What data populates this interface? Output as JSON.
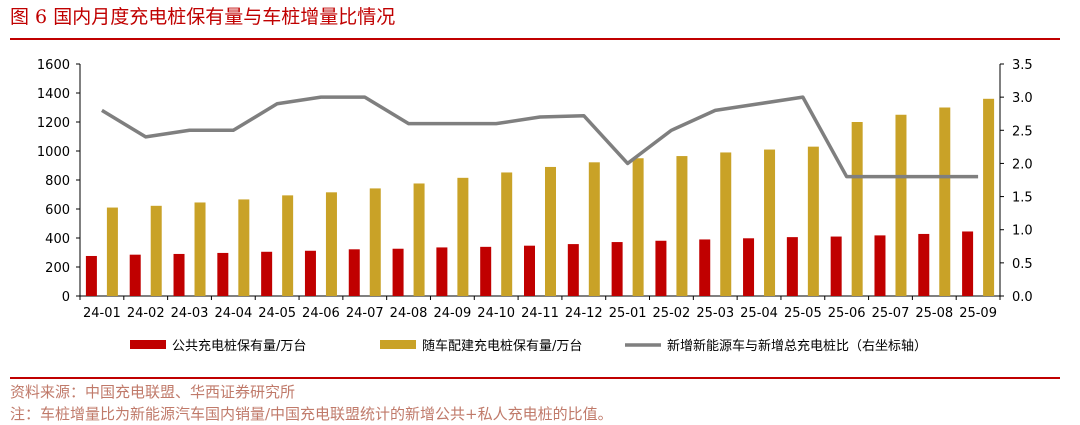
{
  "title": {
    "figure_label": "图 6",
    "text": "国内月度充电桩保有量与车桩增量比情况"
  },
  "footer": {
    "source": "资料来源：中国充电联盟、华西证券研究所",
    "note": "注：车桩增量比为新能源汽车国内销量/中国充电联盟统计的新增公共+私人充电桩的比值。"
  },
  "colors": {
    "public": "#c00000",
    "total": "#c9a227",
    "ratio": "#7f7f7f",
    "accent": "#c00000"
  },
  "chart_data": {
    "type": "bar",
    "categories": [
      "24-01",
      "24-02",
      "24-03",
      "24-04",
      "24-05",
      "24-06",
      "24-07",
      "24-08",
      "24-09",
      "24-10",
      "24-11",
      "24-12",
      "25-01",
      "25-02",
      "25-03",
      "25-04",
      "25-05",
      "25-06",
      "25-07",
      "25-08",
      "25-09"
    ],
    "series": [
      {
        "name": "公共充电桩保有量/万台",
        "type": "bar",
        "axis": "left",
        "values": [
          276,
          285,
          290,
          297,
          305,
          312,
          322,
          326,
          335,
          339,
          347,
          358,
          372,
          381,
          390,
          398,
          406,
          410,
          418,
          428,
          445
        ]
      },
      {
        "name": "随车配建充电桩保有量/万台",
        "type": "bar",
        "axis": "left",
        "values": [
          610,
          622,
          645,
          666,
          694,
          715,
          742,
          776,
          815,
          852,
          890,
          922,
          950,
          965,
          990,
          1010,
          1030,
          1200,
          1250,
          1300,
          1360
        ]
      },
      {
        "name": "新增新能源车与新增总充电桩比（右坐标轴）",
        "type": "line",
        "axis": "right",
        "values": [
          2.8,
          2.4,
          2.5,
          2.5,
          2.9,
          3.0,
          3.0,
          2.6,
          2.6,
          2.6,
          2.7,
          2.72,
          2.0,
          2.5,
          2.8,
          2.9,
          3.0,
          1.8,
          1.8,
          1.8,
          1.8
        ]
      }
    ],
    "left_axis": {
      "min": 0,
      "max": 1600,
      "ticks": [
        "0",
        "200",
        "400",
        "600",
        "800",
        "1000",
        "1200",
        "1400",
        "1600"
      ]
    },
    "right_axis": {
      "min": 0,
      "max": 3.5,
      "ticks": [
        "0.0",
        "0.5",
        "1.0",
        "1.5",
        "2.0",
        "2.5",
        "3.0",
        "3.5"
      ]
    },
    "grid": false,
    "legend_position": "bottom"
  }
}
